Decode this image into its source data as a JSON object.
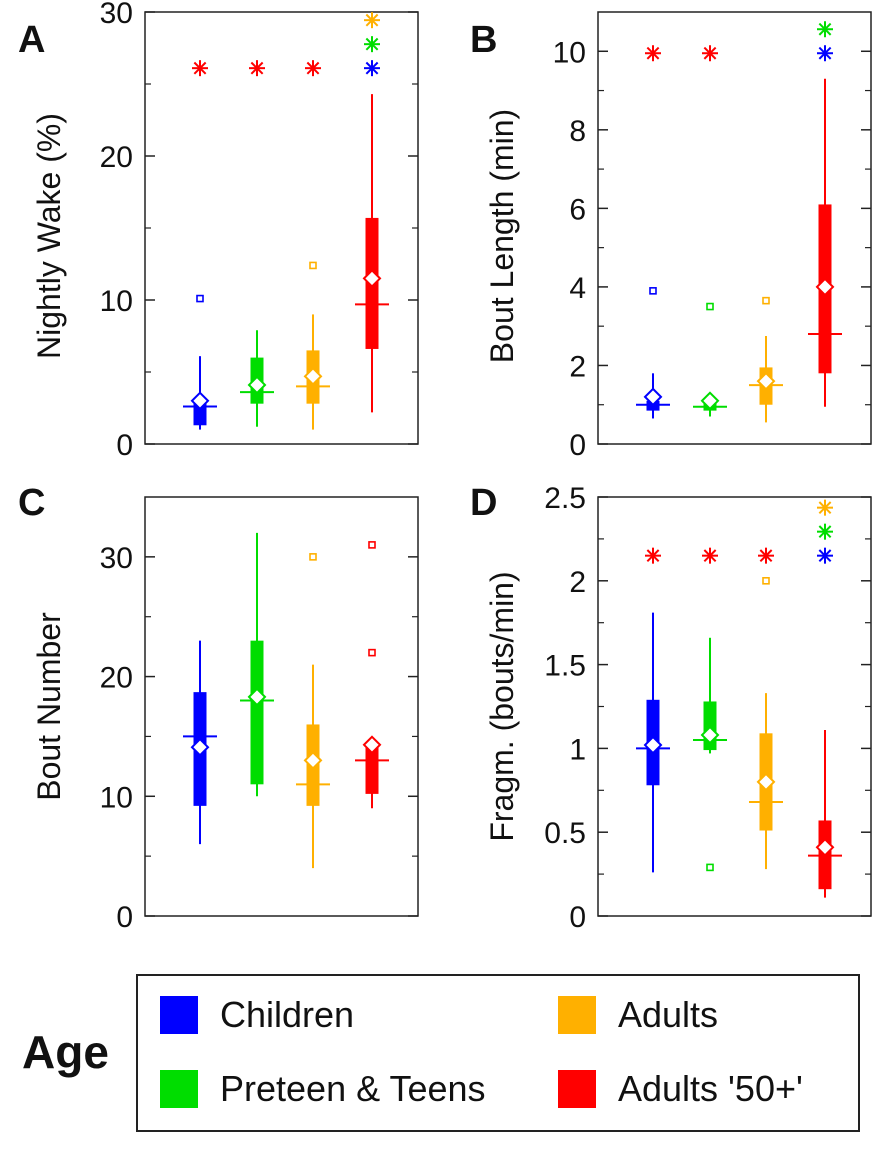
{
  "chart_data": [
    {
      "panel": "A",
      "type": "box",
      "ylabel": "Nightly Wake (%)",
      "ylim": [
        0,
        30
      ],
      "yticks": [
        0,
        10,
        20,
        30
      ],
      "groups": [
        {
          "name": "Children",
          "whisker_low": 1.0,
          "q1": 1.3,
          "median": 2.6,
          "q3": 3.2,
          "whisker_high": 6.1,
          "mean": 3.0,
          "outliers": [
            10.1
          ],
          "sig_stars": [
            "#ff0000"
          ]
        },
        {
          "name": "Preteen & Teens",
          "whisker_low": 1.2,
          "q1": 2.8,
          "median": 3.6,
          "q3": 6.0,
          "whisker_high": 7.9,
          "mean": 4.1,
          "outliers": [],
          "sig_stars": [
            "#ff0000"
          ]
        },
        {
          "name": "Adults",
          "whisker_low": 1.0,
          "q1": 2.8,
          "median": 4.0,
          "q3": 6.5,
          "whisker_high": 9.0,
          "mean": 4.7,
          "outliers": [
            12.4
          ],
          "sig_stars": [
            "#ff0000"
          ]
        },
        {
          "name": "Adults '50+'",
          "whisker_low": 2.2,
          "q1": 6.6,
          "median": 9.7,
          "q3": 15.7,
          "whisker_high": 24.3,
          "mean": 11.5,
          "outliers": [],
          "sig_stars": [
            "#0000ff",
            "#00dd00",
            "#ffb000"
          ]
        }
      ]
    },
    {
      "panel": "B",
      "type": "box",
      "ylabel": "Bout Length (min)",
      "ylim": [
        0,
        11
      ],
      "yticks": [
        0,
        2,
        4,
        6,
        8,
        10
      ],
      "groups": [
        {
          "name": "Children",
          "whisker_low": 0.65,
          "q1": 0.85,
          "median": 1.0,
          "q3": 1.1,
          "whisker_high": 1.8,
          "mean": 1.2,
          "outliers": [
            3.9
          ],
          "sig_stars": [
            "#ff0000"
          ]
        },
        {
          "name": "Preteen & Teens",
          "whisker_low": 0.7,
          "q1": 0.85,
          "median": 0.95,
          "q3": 1.05,
          "whisker_high": 1.3,
          "mean": 1.1,
          "outliers": [
            3.5
          ],
          "sig_stars": [
            "#ff0000"
          ]
        },
        {
          "name": "Adults",
          "whisker_low": 0.55,
          "q1": 1.0,
          "median": 1.5,
          "q3": 1.95,
          "whisker_high": 2.75,
          "mean": 1.6,
          "outliers": [
            3.65
          ],
          "sig_stars": []
        },
        {
          "name": "Adults '50+'",
          "whisker_low": 0.95,
          "q1": 1.8,
          "median": 2.8,
          "q3": 6.1,
          "whisker_high": 9.3,
          "mean": 4.0,
          "outliers": [],
          "sig_stars": [
            "#0000ff",
            "#00dd00"
          ]
        }
      ]
    },
    {
      "panel": "C",
      "type": "box",
      "ylabel": "Bout Number",
      "ylim": [
        0,
        35
      ],
      "yticks": [
        0,
        10,
        20,
        30
      ],
      "groups": [
        {
          "name": "Children",
          "whisker_low": 6,
          "q1": 9.2,
          "median": 15,
          "q3": 18.7,
          "whisker_high": 23,
          "mean": 14.1,
          "outliers": [],
          "sig_stars": []
        },
        {
          "name": "Preteen & Teens",
          "whisker_low": 10,
          "q1": 11,
          "median": 18,
          "q3": 23,
          "whisker_high": 32,
          "mean": 18.3,
          "outliers": [],
          "sig_stars": []
        },
        {
          "name": "Adults",
          "whisker_low": 4,
          "q1": 9.2,
          "median": 11,
          "q3": 16,
          "whisker_high": 21,
          "mean": 13.0,
          "outliers": [
            30
          ],
          "sig_stars": []
        },
        {
          "name": "Adults '50+'",
          "whisker_low": 9,
          "q1": 10.2,
          "median": 13,
          "q3": 14.5,
          "whisker_high": 14.5,
          "mean": 14.3,
          "outliers": [
            22,
            31
          ],
          "sig_stars": []
        }
      ]
    },
    {
      "panel": "D",
      "type": "box",
      "ylabel": "Fragm. (bouts/min)",
      "ylim": [
        0,
        2.5
      ],
      "yticks": [
        0,
        0.5,
        1,
        1.5,
        2,
        2.5
      ],
      "groups": [
        {
          "name": "Children",
          "whisker_low": 0.26,
          "q1": 0.78,
          "median": 1.0,
          "q3": 1.29,
          "whisker_high": 1.81,
          "mean": 1.02,
          "outliers": [],
          "sig_stars": [
            "#ff0000"
          ]
        },
        {
          "name": "Preteen & Teens",
          "whisker_low": 0.97,
          "q1": 0.99,
          "median": 1.05,
          "q3": 1.28,
          "whisker_high": 1.66,
          "mean": 1.08,
          "outliers": [
            0.29
          ],
          "sig_stars": [
            "#ff0000"
          ]
        },
        {
          "name": "Adults",
          "whisker_low": 0.28,
          "q1": 0.51,
          "median": 0.68,
          "q3": 1.09,
          "whisker_high": 1.33,
          "mean": 0.8,
          "outliers": [
            2.0
          ],
          "sig_stars": [
            "#ff0000"
          ]
        },
        {
          "name": "Adults '50+'",
          "whisker_low": 0.11,
          "q1": 0.16,
          "median": 0.36,
          "q3": 0.57,
          "whisker_high": 1.11,
          "mean": 0.41,
          "outliers": [],
          "sig_stars": [
            "#0000ff",
            "#00dd00",
            "#ffb000"
          ]
        }
      ]
    }
  ],
  "colors": {
    "Children": "#0000ff",
    "Preteen & Teens": "#00dd00",
    "Adults": "#ffb000",
    "Adults '50+'": "#ff0000"
  },
  "legend": {
    "title": "Age",
    "entries": [
      {
        "label": "Children",
        "color": "#0000ff"
      },
      {
        "label": "Preteen & Teens",
        "color": "#00dd00"
      },
      {
        "label": "Adults",
        "color": "#ffb000"
      },
      {
        "label": "Adults '50+'",
        "color": "#ff0000"
      }
    ]
  }
}
